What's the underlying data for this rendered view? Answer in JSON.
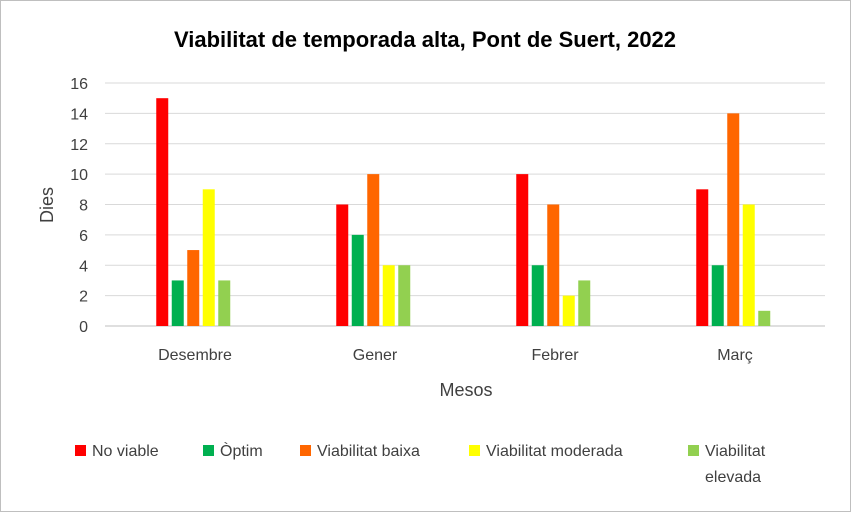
{
  "chart_data": {
    "type": "bar",
    "title": "Viabilitat de temporada alta, Pont de Suert, 2022",
    "xlabel": "Mesos",
    "ylabel": "Dies",
    "ylim": [
      0,
      16
    ],
    "yticks": [
      0,
      2,
      4,
      6,
      8,
      10,
      12,
      14,
      16
    ],
    "grid": true,
    "legend_position": "bottom",
    "categories": [
      "Desembre",
      "Gener",
      "Febrer",
      "Març"
    ],
    "series": [
      {
        "name": "No viable",
        "color": "#ff0000",
        "values": [
          15,
          8,
          10,
          9
        ]
      },
      {
        "name": "Òptim",
        "color": "#00b050",
        "values": [
          3,
          6,
          4,
          4
        ]
      },
      {
        "name": "Viabilitat baixa",
        "color": "#ff6600",
        "values": [
          5,
          10,
          8,
          14
        ]
      },
      {
        "name": "Viabilitat moderada",
        "color": "#ffff00",
        "values": [
          9,
          4,
          2,
          8
        ]
      },
      {
        "name": "Viabilitat elevada",
        "color": "#92d050",
        "values": [
          3,
          4,
          3,
          1
        ]
      }
    ]
  }
}
